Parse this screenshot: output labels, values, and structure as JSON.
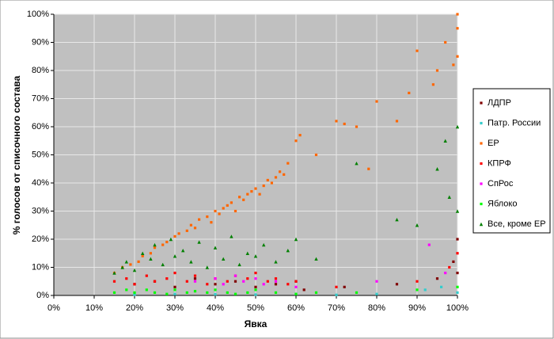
{
  "chart_data": {
    "type": "scatter",
    "x_label": "Явка",
    "y_label": "% голосов от списочного состава",
    "xlim": [
      0,
      100
    ],
    "ylim": [
      0,
      100
    ],
    "xticks": [
      {
        "value": 0,
        "label": "0%"
      },
      {
        "value": 10,
        "label": "10%"
      },
      {
        "value": 20,
        "label": "20%"
      },
      {
        "value": 30,
        "label": "30%"
      },
      {
        "value": 40,
        "label": "40%"
      },
      {
        "value": 50,
        "label": "50%"
      },
      {
        "value": 60,
        "label": "60%"
      },
      {
        "value": 70,
        "label": "70%"
      },
      {
        "value": 80,
        "label": "80%"
      },
      {
        "value": 90,
        "label": "90%"
      },
      {
        "value": 100,
        "label": "100%"
      }
    ],
    "yticks": [
      {
        "value": 0,
        "label": "0%"
      },
      {
        "value": 10,
        "label": "10%"
      },
      {
        "value": 20,
        "label": "20%"
      },
      {
        "value": 30,
        "label": "30%"
      },
      {
        "value": 40,
        "label": "40%"
      },
      {
        "value": 50,
        "label": "50%"
      },
      {
        "value": 60,
        "label": "60%"
      },
      {
        "value": 70,
        "label": "70%"
      },
      {
        "value": 80,
        "label": "80%"
      },
      {
        "value": 90,
        "label": "90%"
      },
      {
        "value": 100,
        "label": "100%"
      }
    ],
    "grid": true,
    "legend": "right",
    "series": [
      {
        "name": "ЛДПР",
        "color": "#800000",
        "x": [
          20,
          25,
          30,
          35,
          40,
          45,
          50,
          55,
          60,
          62,
          72,
          85,
          95,
          99,
          100,
          100
        ],
        "values": [
          4,
          5,
          3,
          6,
          4,
          5,
          3,
          4,
          5,
          2,
          3,
          4,
          6,
          12,
          20,
          8
        ]
      },
      {
        "name": "Патр. России",
        "color": "#33cccc",
        "x": [
          20,
          30,
          40,
          50,
          60,
          70,
          80,
          92,
          96,
          100
        ],
        "values": [
          0.3,
          0.5,
          0.4,
          0.3,
          0.5,
          0.2,
          0.5,
          2,
          3,
          1
        ]
      },
      {
        "name": "ЕР",
        "color": "#ff6600",
        "x": [
          15,
          17,
          19,
          21,
          22,
          24,
          25,
          27,
          28,
          30,
          31,
          33,
          34,
          35,
          36,
          38,
          39,
          40,
          41,
          42,
          43,
          44,
          45,
          46,
          47,
          48,
          49,
          50,
          51,
          52,
          53,
          54,
          55,
          56,
          57,
          58,
          60,
          61,
          65,
          70,
          72,
          75,
          78,
          80,
          85,
          88,
          90,
          94,
          95,
          97,
          99,
          100,
          100,
          100
        ],
        "values": [
          8,
          10,
          11,
          12,
          14,
          15,
          17,
          18,
          19,
          21,
          22,
          23,
          25,
          24,
          27,
          28,
          26,
          30,
          29,
          31,
          32,
          33,
          30,
          35,
          34,
          36,
          37,
          38,
          36,
          39,
          41,
          40,
          42,
          44,
          43,
          47,
          55,
          57,
          50,
          62,
          61,
          60,
          45,
          69,
          62,
          72,
          87,
          75,
          80,
          90,
          82,
          100,
          95,
          85
        ]
      },
      {
        "name": "КПРФ",
        "color": "#ff0000",
        "x": [
          15,
          18,
          20,
          23,
          25,
          28,
          30,
          33,
          35,
          38,
          40,
          43,
          45,
          48,
          50,
          53,
          55,
          58,
          60,
          70,
          90,
          98,
          100
        ],
        "values": [
          5,
          6,
          4,
          7,
          5,
          6,
          8,
          5,
          7,
          4,
          6,
          5,
          7,
          6,
          8,
          5,
          6,
          4,
          5,
          3,
          5,
          10,
          15
        ]
      },
      {
        "name": "СпРос",
        "color": "#ff00ff",
        "x": [
          35,
          40,
          42,
          45,
          47,
          50,
          52,
          55,
          60,
          80,
          93,
          97
        ],
        "values": [
          5,
          6,
          4,
          7,
          5,
          6,
          4,
          5,
          3,
          5,
          18,
          8
        ]
      },
      {
        "name": "Яблоко",
        "color": "#00ff00",
        "x": [
          15,
          18,
          20,
          23,
          25,
          28,
          30,
          33,
          35,
          38,
          40,
          43,
          45,
          48,
          50,
          55,
          60,
          65,
          75,
          90,
          100
        ],
        "values": [
          1,
          2,
          1,
          2,
          1,
          0.5,
          2,
          1,
          1.5,
          1,
          2,
          1,
          0.5,
          1,
          2,
          1,
          0.5,
          1,
          1,
          2,
          3
        ]
      },
      {
        "name": "Все, кроме ЕР",
        "color": "#008000",
        "x": [
          15,
          17,
          18,
          20,
          22,
          24,
          25,
          27,
          29,
          30,
          32,
          34,
          36,
          38,
          40,
          42,
          44,
          46,
          48,
          50,
          52,
          55,
          58,
          60,
          65,
          75,
          85,
          90,
          95,
          97,
          98,
          100,
          100
        ],
        "values": [
          8,
          10,
          12,
          9,
          15,
          13,
          18,
          11,
          20,
          14,
          16,
          12,
          19,
          10,
          17,
          13,
          21,
          11,
          15,
          14,
          18,
          12,
          16,
          20,
          13,
          47,
          27,
          25,
          45,
          55,
          35,
          60,
          30
        ]
      }
    ]
  }
}
